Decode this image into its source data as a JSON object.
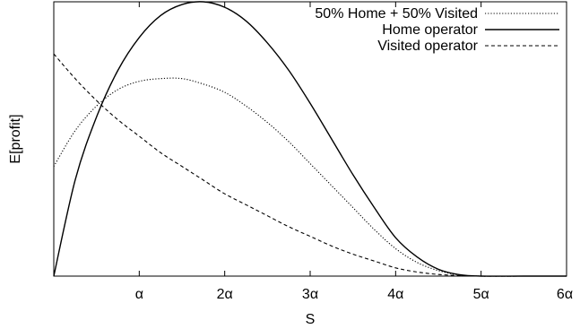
{
  "chart_data": {
    "type": "line",
    "xlabel": "S",
    "ylabel": "E[profit]",
    "x_ticks": [
      {
        "value": 1,
        "label": "α"
      },
      {
        "value": 2,
        "label": "2α"
      },
      {
        "value": 3,
        "label": "3α"
      },
      {
        "value": 4,
        "label": "4α"
      },
      {
        "value": 5,
        "label": "5α"
      },
      {
        "value": 6,
        "label": "6α"
      }
    ],
    "xlim": [
      0,
      6
    ],
    "ylim": [
      0,
      1
    ],
    "y_tick_labels_shown": false,
    "grid": false,
    "legend_position": "top-right",
    "series": [
      {
        "name": "50% Home + 50% Visited",
        "style": "dotted",
        "color": "#000000",
        "x": [
          0,
          0.25,
          0.5,
          0.75,
          1.0,
          1.25,
          1.5,
          1.75,
          2.0,
          2.25,
          2.5,
          2.75,
          3.0,
          3.25,
          3.5,
          3.75,
          4.0,
          4.25,
          4.5,
          4.75,
          5.0,
          5.5,
          6.0
        ],
        "y": [
          0.4,
          0.53,
          0.62,
          0.68,
          0.71,
          0.72,
          0.72,
          0.7,
          0.67,
          0.62,
          0.56,
          0.49,
          0.41,
          0.33,
          0.25,
          0.17,
          0.1,
          0.05,
          0.02,
          0.004,
          0.0,
          0.0,
          0.0
        ]
      },
      {
        "name": "Home operator",
        "style": "solid",
        "color": "#000000",
        "x": [
          0,
          0.25,
          0.5,
          0.75,
          1.0,
          1.25,
          1.5,
          1.75,
          2.0,
          2.25,
          2.5,
          2.75,
          3.0,
          3.25,
          3.5,
          3.75,
          4.0,
          4.25,
          4.5,
          4.75,
          5.0,
          5.5,
          6.0
        ],
        "y": [
          0.0,
          0.35,
          0.58,
          0.75,
          0.87,
          0.95,
          0.99,
          1.0,
          0.98,
          0.93,
          0.85,
          0.75,
          0.63,
          0.5,
          0.37,
          0.25,
          0.14,
          0.07,
          0.025,
          0.005,
          0.0,
          0.0,
          0.0
        ]
      },
      {
        "name": "Visited operator",
        "style": "dashed",
        "color": "#000000",
        "x": [
          0,
          0.25,
          0.5,
          0.75,
          1.0,
          1.25,
          1.5,
          1.75,
          2.0,
          2.25,
          2.5,
          2.75,
          3.0,
          3.25,
          3.5,
          3.75,
          4.0,
          4.25,
          4.5,
          4.75,
          5.0,
          5.5,
          6.0
        ],
        "y": [
          0.81,
          0.72,
          0.64,
          0.57,
          0.51,
          0.45,
          0.4,
          0.35,
          0.3,
          0.26,
          0.22,
          0.18,
          0.145,
          0.11,
          0.08,
          0.055,
          0.03,
          0.015,
          0.006,
          0.002,
          0.0,
          0.0,
          0.0
        ]
      }
    ]
  }
}
